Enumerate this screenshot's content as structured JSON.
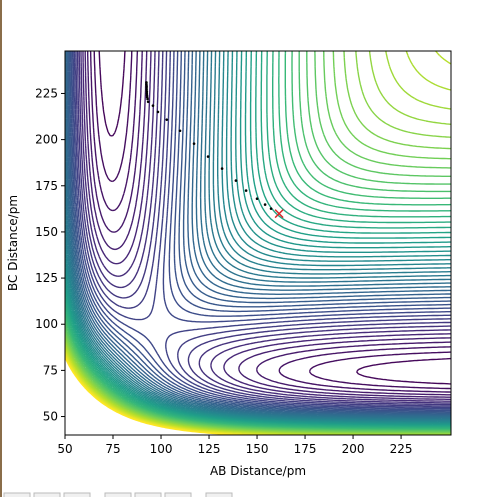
{
  "chart_data": {
    "type": "contour",
    "xlabel": "AB Distance/pm",
    "ylabel": "BC Distance/pm",
    "xlim": [
      50,
      251
    ],
    "ylim": [
      40,
      248
    ],
    "xticks": [
      50,
      75,
      100,
      125,
      150,
      175,
      200,
      225
    ],
    "yticks": [
      50,
      75,
      100,
      125,
      150,
      175,
      200,
      225
    ],
    "points": {
      "color": "#000000",
      "x": [
        92.4,
        92.4,
        92.5,
        92.5,
        92.5,
        92.6,
        92.6,
        92.7,
        92.8,
        93.0,
        93.3,
        95.8,
        98.4,
        103.0,
        109.9,
        117.2,
        124.5,
        131.8,
        139.0,
        144.3,
        150.0,
        154.2,
        157.3
      ],
      "y": [
        231.0,
        230.0,
        229.0,
        228.0,
        227.0,
        226.0,
        225.0,
        224.0,
        223.0,
        222.0,
        220.5,
        218.4,
        215.0,
        210.8,
        204.8,
        197.8,
        190.8,
        184.3,
        177.8,
        172.4,
        168.0,
        164.8,
        162.6
      ]
    },
    "end_point": {
      "x": 161.5,
      "y": 159.9,
      "color": "#d62728"
    }
  }
}
